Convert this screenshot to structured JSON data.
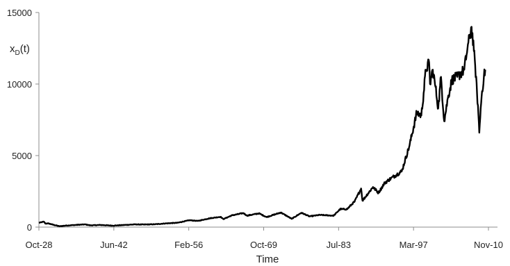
{
  "chart_data": {
    "type": "line",
    "title": "",
    "xlabel": "Time",
    "ylabel": "x_D(t)",
    "ylabel_main": "x",
    "ylabel_sub": "D",
    "ylabel_tail": "(t)",
    "ylim": [
      0,
      15000
    ],
    "yticks": [
      0,
      5000,
      10000,
      15000
    ],
    "xlim": [
      "1928-10-01",
      "2010-11-01"
    ],
    "xticks": [
      "Oct-28",
      "Jun-42",
      "Feb-56",
      "Oct-69",
      "Jul-83",
      "Mar-97",
      "Nov-10"
    ],
    "grid": false,
    "legend": "none",
    "line_color": "#000000",
    "series": [
      {
        "x": [
          "1928-10-01",
          "1929-09-01",
          "1929-12-01",
          "1930-06-01",
          "1931-06-01",
          "1932-07-01",
          "1933-07-01",
          "1935-01-01",
          "1937-03-01",
          "1938-03-01",
          "1940-01-01",
          "1942-04-01",
          "1944-01-01",
          "1946-05-01",
          "1948-01-01",
          "1950-01-01",
          "1952-01-01",
          "1954-01-01",
          "1956-04-01",
          "1957-10-01",
          "1960-01-01",
          "1961-12-01",
          "1962-06-01",
          "1964-01-01",
          "1966-02-01",
          "1966-10-01",
          "1968-12-01",
          "1970-05-01",
          "1972-12-01",
          "1974-12-01",
          "1976-09-01",
          "1978-03-01",
          "1980-01-01",
          "1982-08-01",
          "1983-10-01",
          "1985-01-01",
          "1986-06-01",
          "1987-08-01",
          "1987-11-01",
          "1989-10-01",
          "1990-10-01",
          "1991-12-01",
          "1993-01-01",
          "1995-01-01",
          "1996-06-01",
          "1997-10-01",
          "1998-08-01",
          "1999-06-01",
          "2000-01-01",
          "2000-03-01",
          "2000-09-01",
          "2001-03-01",
          "2001-09-01",
          "2002-03-01",
          "2002-10-01",
          "2003-06-01",
          "2004-03-01",
          "2005-03-01",
          "2006-06-01",
          "2007-01-01",
          "2007-10-01",
          "2008-03-01",
          "2008-06-01",
          "2008-10-01",
          "2008-12-01",
          "2009-03-01",
          "2009-06-01",
          "2009-09-01",
          "2010-01-01",
          "2010-04-01"
        ],
        "y": [
          300,
          380,
          250,
          260,
          160,
          60,
          100,
          140,
          190,
          120,
          150,
          100,
          140,
          190,
          180,
          200,
          260,
          300,
          480,
          430,
          620,
          720,
          560,
          820,
          980,
          800,
          960,
          700,
          1020,
          580,
          1000,
          750,
          850,
          800,
          1260,
          1250,
          1800,
          2700,
          1850,
          2800,
          2400,
          3100,
          3400,
          3900,
          5700,
          8000,
          7800,
          11000,
          11500,
          10000,
          11000,
          9800,
          8300,
          10500,
          7400,
          9000,
          10300,
          10500,
          11000,
          12500,
          14000,
          12300,
          11300,
          9300,
          8500,
          6600,
          8300,
          9500,
          10500,
          11000
        ]
      }
    ]
  }
}
